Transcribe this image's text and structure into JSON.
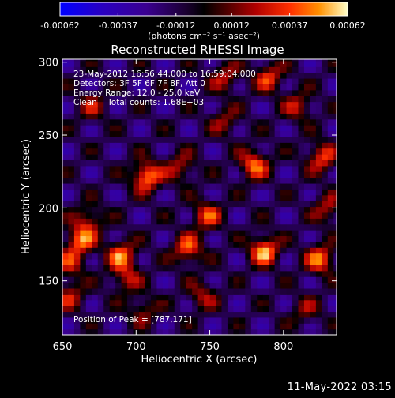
{
  "chart_data": {
    "type": "heatmap",
    "title": "Reconstructed RHESSI Image",
    "xlabel": "Heliocentric X (arcsec)",
    "ylabel": "Heliocentric Y (arcsec)",
    "xlim": [
      650,
      836
    ],
    "ylim": [
      113,
      302
    ],
    "x_ticks": [
      "650",
      "700",
      "750",
      "800"
    ],
    "y_ticks": [
      "150",
      "200",
      "250",
      "300"
    ],
    "colorbar": {
      "ticks": [
        "-0.00062",
        "-0.00037",
        "-0.00012",
        "0.00012",
        "0.00037",
        "0.00062"
      ],
      "range": [
        -0.00062,
        0.00062
      ],
      "unit_label": "(photons cm⁻² s⁻¹ asec⁻²)"
    },
    "info_lines": [
      "23-May-2012 16:56:44.000 to 16:59:04.000",
      "Detectors: 3F 5F 6F 7F 8F, Att 0",
      "Energy Range: 12.0 - 25.0 keV",
      "Clean    Total counts: 1.68E+03"
    ],
    "peak_label": "Position of Peak = [787,171]",
    "peak": [
      787,
      171
    ],
    "sources": [
      {
        "x": 707,
        "y": 222,
        "strength": 1.0
      },
      {
        "x": 787,
        "y": 171,
        "strength": 1.0
      },
      {
        "x": 662,
        "y": 178,
        "strength": 0.85
      },
      {
        "x": 668,
        "y": 192,
        "strength": 0.55
      },
      {
        "x": 655,
        "y": 162,
        "strength": 0.55
      },
      {
        "x": 690,
        "y": 168,
        "strength": 0.8
      },
      {
        "x": 693,
        "y": 152,
        "strength": 0.55
      },
      {
        "x": 735,
        "y": 172,
        "strength": 0.8
      },
      {
        "x": 748,
        "y": 195,
        "strength": 0.7
      },
      {
        "x": 730,
        "y": 228,
        "strength": 0.55
      },
      {
        "x": 780,
        "y": 230,
        "strength": 0.85
      },
      {
        "x": 826,
        "y": 235,
        "strength": 0.75
      },
      {
        "x": 825,
        "y": 165,
        "strength": 0.85
      },
      {
        "x": 810,
        "y": 270,
        "strength": 0.55
      },
      {
        "x": 790,
        "y": 290,
        "strength": 0.7
      },
      {
        "x": 760,
        "y": 290,
        "strength": 0.55
      },
      {
        "x": 670,
        "y": 270,
        "strength": 0.45
      },
      {
        "x": 655,
        "y": 140,
        "strength": 0.55
      },
      {
        "x": 745,
        "y": 140,
        "strength": 0.5
      },
      {
        "x": 705,
        "y": 130,
        "strength": 0.45
      },
      {
        "x": 815,
        "y": 130,
        "strength": 0.4
      },
      {
        "x": 760,
        "y": 260,
        "strength": 0.45
      },
      {
        "x": 830,
        "y": 200,
        "strength": 0.55
      }
    ]
  },
  "footer": {
    "date": "11-May-2022 03:15"
  }
}
